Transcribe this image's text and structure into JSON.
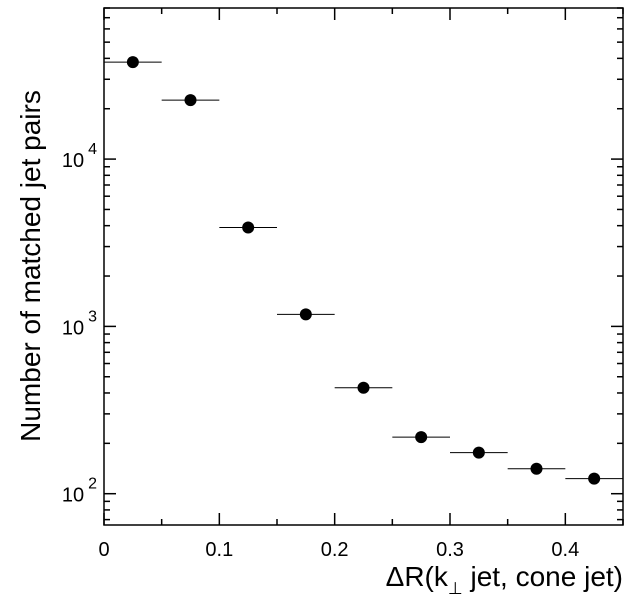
{
  "chart_data": {
    "type": "scatter",
    "xlabel": "ΔR(k⊥ jet, cone jet)",
    "xlabel_parts": {
      "prefix": "ΔR(k",
      "subscript": "⊥",
      "suffix": " jet, cone jet)"
    },
    "ylabel": "Number of matched jet pairs",
    "xlim": [
      0,
      0.45
    ],
    "ylim": [
      65,
      80000
    ],
    "yscale": "log",
    "grid": false,
    "legend": "none",
    "x_ticks": [
      {
        "value": 0,
        "label": "0"
      },
      {
        "value": 0.1,
        "label": "0.1"
      },
      {
        "value": 0.2,
        "label": "0.2"
      },
      {
        "value": 0.3,
        "label": "0.3"
      },
      {
        "value": 0.4,
        "label": "0.4"
      }
    ],
    "y_ticks": [
      {
        "value": 100,
        "base": "10",
        "exp": "2"
      },
      {
        "value": 1000,
        "base": "10",
        "exp": "3"
      },
      {
        "value": 10000,
        "base": "10",
        "exp": "4"
      }
    ],
    "series": [
      {
        "x": [
          0.025,
          0.075,
          0.125,
          0.175,
          0.225,
          0.275,
          0.325,
          0.375,
          0.425
        ],
        "x_bin_width": 0.05,
        "y": [
          38000,
          22500,
          3900,
          1180,
          430,
          218,
          176,
          141,
          123
        ]
      }
    ]
  }
}
